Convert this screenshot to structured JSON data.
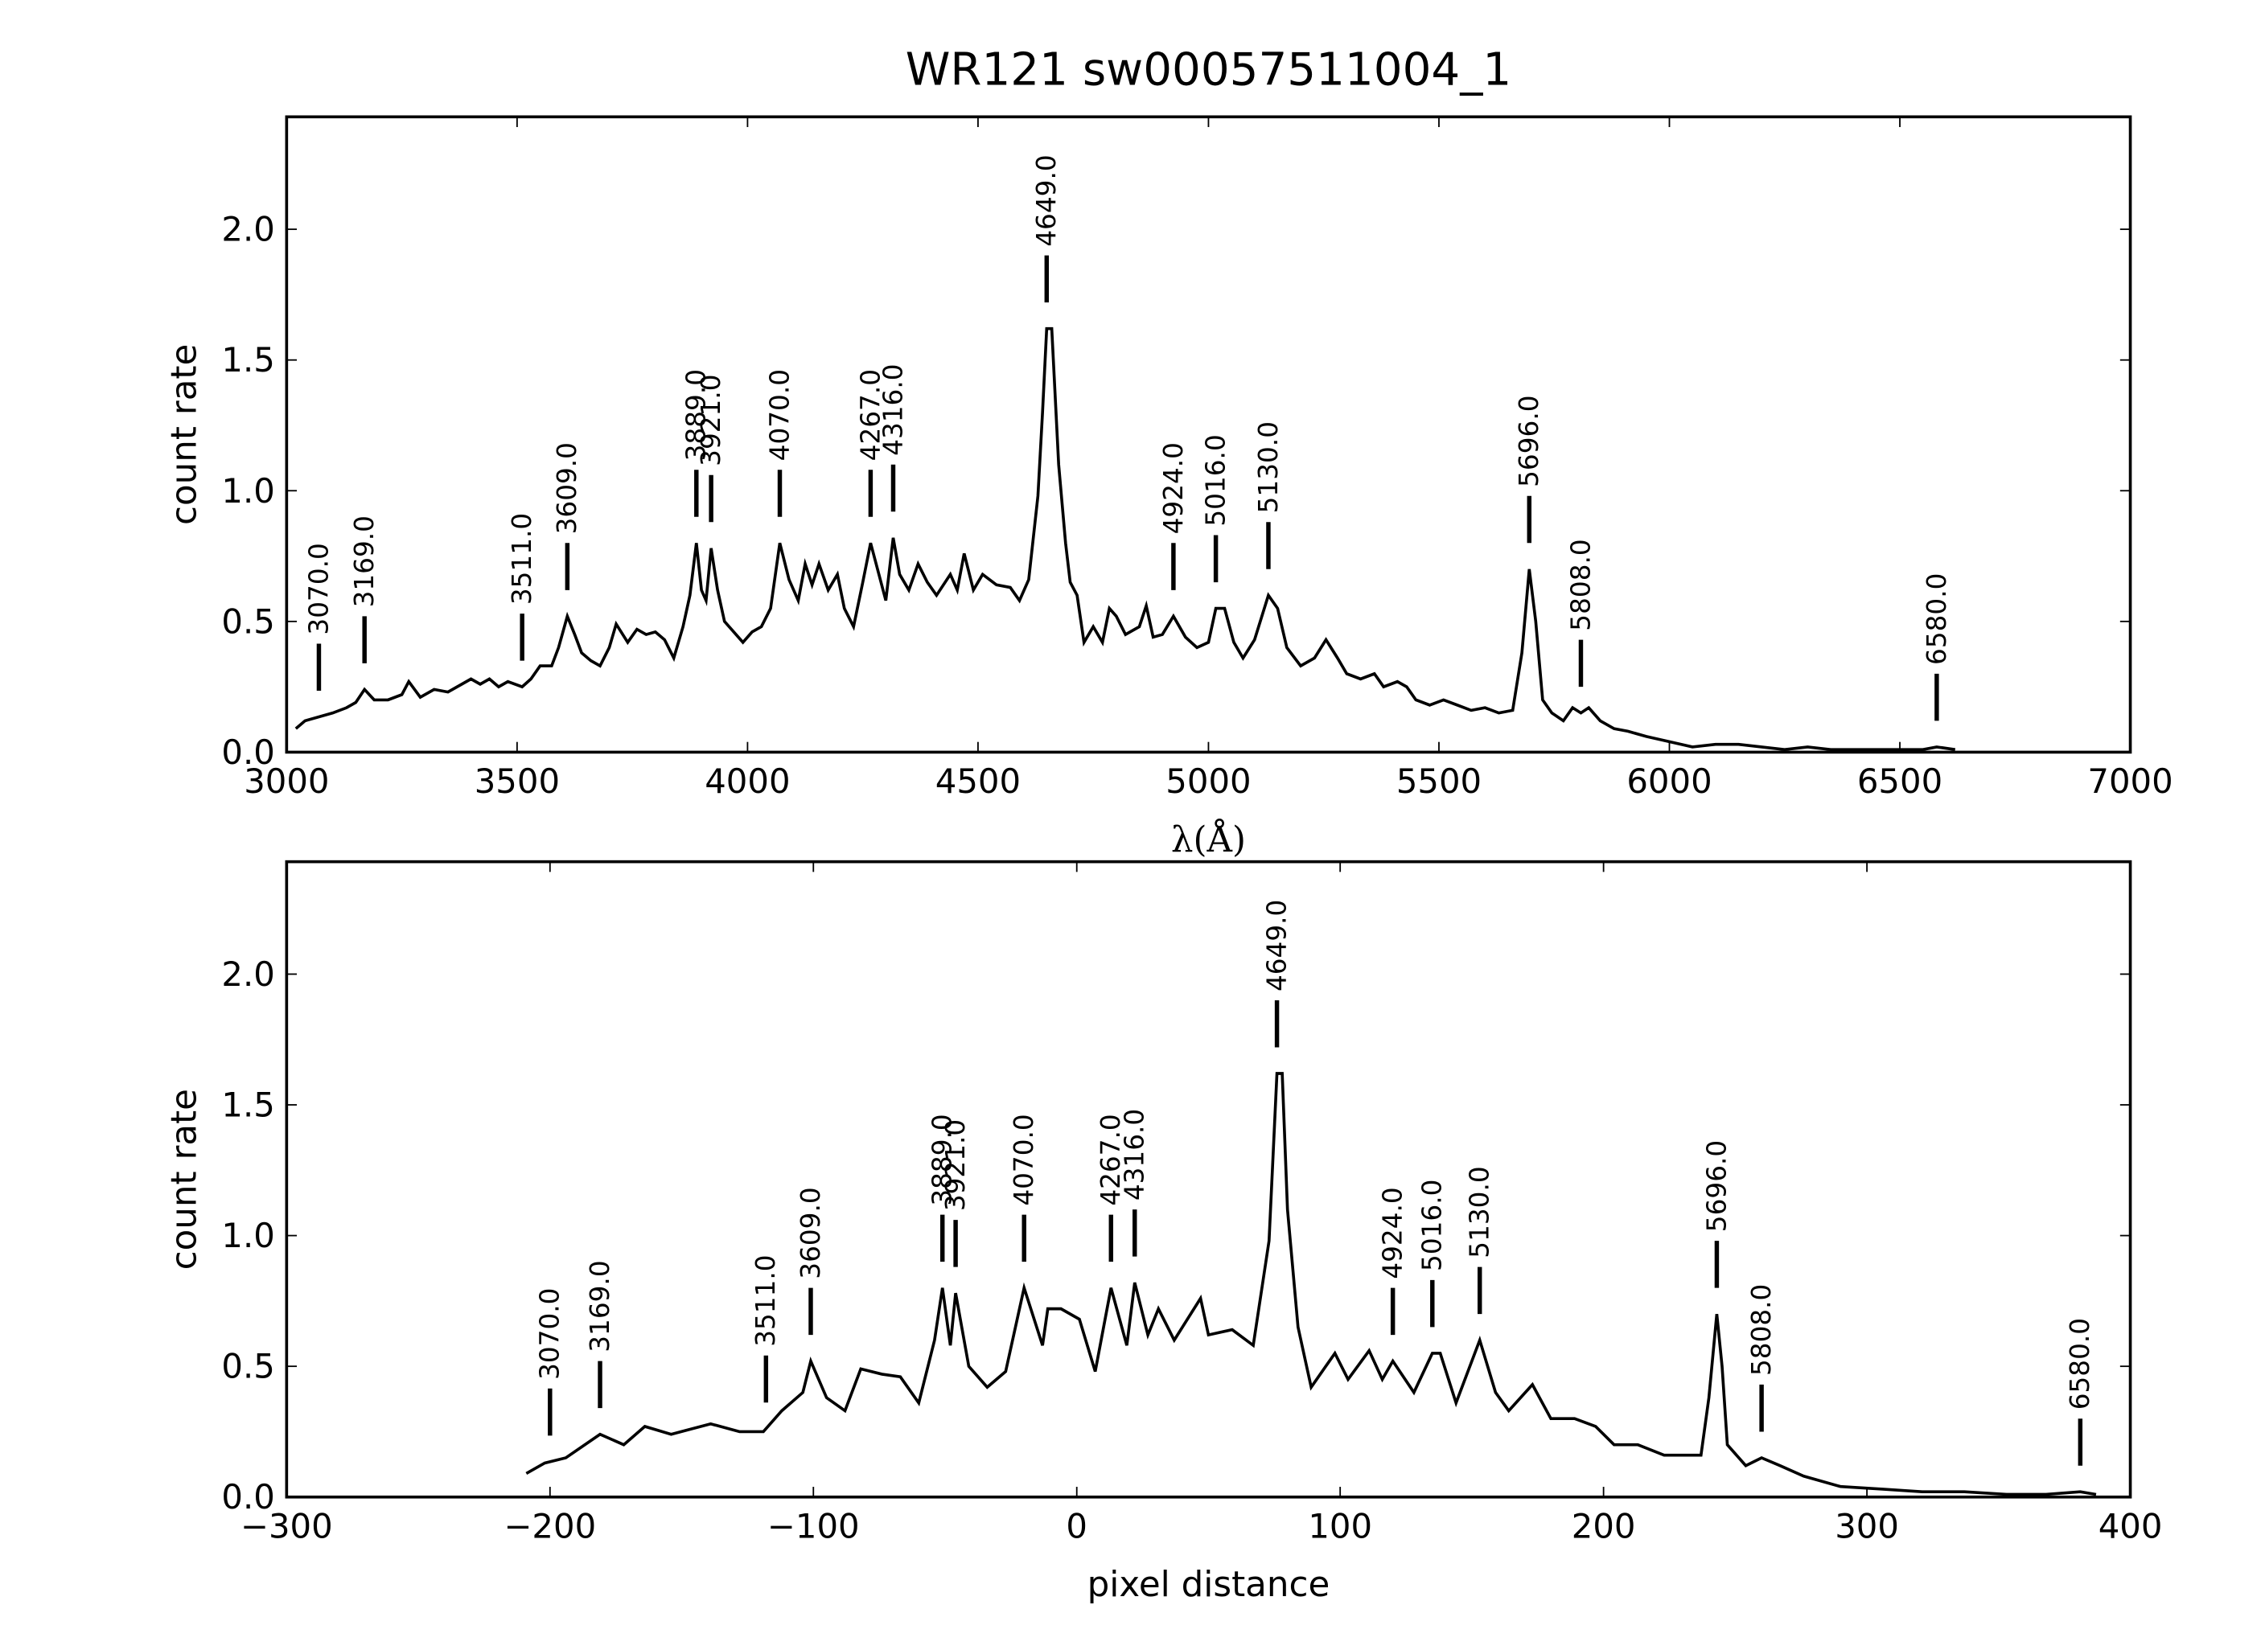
{
  "chart_data": [
    {
      "type": "line",
      "title": "WR121  sw00057511004_1",
      "xlabel": "λ(Å)",
      "ylabel": "count rate",
      "xlim": [
        3000,
        7000
      ],
      "xticks": [
        3000,
        3500,
        4000,
        4500,
        5000,
        5500,
        6000,
        6500,
        7000
      ],
      "ylim": [
        0,
        2.43
      ],
      "yticks": [
        {
          "value": 0,
          "label": "0.0"
        },
        0.5,
        {
          "value": 1,
          "label": "1.0"
        },
        1.5,
        {
          "value": 2,
          "label": "2.0"
        }
      ],
      "series": [
        {
          "color": "#000000",
          "x": [
            3020,
            3040,
            3060,
            3080,
            3100,
            3130,
            3150,
            3169,
            3190,
            3220,
            3250,
            3265,
            3290,
            3320,
            3350,
            3380,
            3400,
            3420,
            3440,
            3460,
            3480,
            3511,
            3530,
            3550,
            3575,
            3590,
            3609,
            3625,
            3640,
            3660,
            3680,
            3700,
            3715,
            3740,
            3760,
            3780,
            3800,
            3820,
            3840,
            3860,
            3875,
            3889,
            3900,
            3910,
            3921,
            3935,
            3950,
            3970,
            3990,
            4010,
            4030,
            4050,
            4070,
            4090,
            4110,
            4125,
            4140,
            4155,
            4175,
            4195,
            4210,
            4230,
            4250,
            4267,
            4285,
            4300,
            4316,
            4330,
            4350,
            4370,
            4390,
            4410,
            4440,
            4455,
            4470,
            4490,
            4510,
            4540,
            4570,
            4590,
            4610,
            4630,
            4640,
            4649,
            4660,
            4675,
            4690,
            4700,
            4715,
            4730,
            4750,
            4770,
            4785,
            4800,
            4820,
            4850,
            4865,
            4880,
            4900,
            4924,
            4950,
            4975,
            5000,
            5016,
            5035,
            5055,
            5075,
            5100,
            5130,
            5150,
            5170,
            5200,
            5230,
            5255,
            5280,
            5300,
            5330,
            5360,
            5380,
            5410,
            5430,
            5450,
            5480,
            5510,
            5540,
            5570,
            5600,
            5630,
            5660,
            5680,
            5696,
            5710,
            5725,
            5745,
            5770,
            5790,
            5808,
            5825,
            5850,
            5880,
            5910,
            5950,
            6000,
            6050,
            6100,
            6150,
            6200,
            6250,
            6300,
            6350,
            6400,
            6450,
            6500,
            6550,
            6580,
            6620
          ],
          "values": [
            0.09,
            0.12,
            0.13,
            0.14,
            0.15,
            0.17,
            0.19,
            0.24,
            0.2,
            0.2,
            0.22,
            0.27,
            0.21,
            0.24,
            0.23,
            0.26,
            0.28,
            0.26,
            0.28,
            0.25,
            0.27,
            0.25,
            0.28,
            0.33,
            0.33,
            0.4,
            0.52,
            0.45,
            0.38,
            0.35,
            0.33,
            0.4,
            0.49,
            0.42,
            0.47,
            0.45,
            0.46,
            0.43,
            0.36,
            0.48,
            0.6,
            0.8,
            0.62,
            0.58,
            0.78,
            0.62,
            0.5,
            0.46,
            0.42,
            0.46,
            0.48,
            0.55,
            0.8,
            0.66,
            0.58,
            0.72,
            0.64,
            0.72,
            0.62,
            0.68,
            0.55,
            0.48,
            0.65,
            0.8,
            0.68,
            0.58,
            0.82,
            0.68,
            0.62,
            0.72,
            0.65,
            0.6,
            0.68,
            0.62,
            0.76,
            0.62,
            0.68,
            0.64,
            0.63,
            0.58,
            0.66,
            0.98,
            1.3,
            1.62,
            1.62,
            1.1,
            0.8,
            0.65,
            0.6,
            0.42,
            0.48,
            0.42,
            0.55,
            0.52,
            0.45,
            0.48,
            0.56,
            0.44,
            0.45,
            0.52,
            0.44,
            0.4,
            0.42,
            0.55,
            0.55,
            0.42,
            0.36,
            0.43,
            0.6,
            0.55,
            0.4,
            0.33,
            0.36,
            0.43,
            0.36,
            0.3,
            0.28,
            0.3,
            0.25,
            0.27,
            0.25,
            0.2,
            0.18,
            0.2,
            0.18,
            0.16,
            0.17,
            0.15,
            0.16,
            0.38,
            0.7,
            0.5,
            0.2,
            0.15,
            0.12,
            0.17,
            0.15,
            0.17,
            0.12,
            0.09,
            0.08,
            0.06,
            0.04,
            0.02,
            0.03,
            0.03,
            0.02,
            0.01,
            0.02,
            0.01,
            0.01,
            0.01,
            0.01,
            0.01,
            0.02,
            0.01
          ]
        }
      ],
      "annotations": [
        {
          "label": "3070.0",
          "x": 3070
        },
        {
          "label": "3169.0",
          "x": 3169
        },
        {
          "label": "3511.0",
          "x": 3511
        },
        {
          "label": "3609.0",
          "x": 3609
        },
        {
          "label": "3889.0",
          "x": 3889
        },
        {
          "label": "3921.0",
          "x": 3921
        },
        {
          "label": "4070.0",
          "x": 4070
        },
        {
          "label": "4267.0",
          "x": 4267
        },
        {
          "label": "4316.0",
          "x": 4316
        },
        {
          "label": "4649.0",
          "x": 4649
        },
        {
          "label": "4924.0",
          "x": 4924
        },
        {
          "label": "5016.0",
          "x": 5016
        },
        {
          "label": "5130.0",
          "x": 5130
        },
        {
          "label": "5696.0",
          "x": 5696
        },
        {
          "label": "5808.0",
          "x": 5808
        },
        {
          "label": "6580.0",
          "x": 6580
        }
      ]
    },
    {
      "type": "line",
      "xlabel": "pixel distance",
      "ylabel": "count rate",
      "xlim": [
        -300,
        400
      ],
      "xticks": [
        {
          "value": -300,
          "label": "−300"
        },
        {
          "value": -200,
          "label": "−200"
        },
        {
          "value": -100,
          "label": "−100"
        },
        0,
        100,
        200,
        300,
        400
      ],
      "ylim": [
        0,
        2.43
      ],
      "yticks": [
        {
          "value": 0,
          "label": "0.0"
        },
        0.5,
        {
          "value": 1,
          "label": "1.0"
        },
        1.5,
        {
          "value": 2,
          "label": "2.0"
        }
      ],
      "series": [
        {
          "color": "#000000",
          "x": [
            -209,
            -202,
            -194,
            -181,
            -172,
            -164,
            -154,
            -139,
            -128,
            -119,
            -112,
            -104,
            -101,
            -95,
            -88,
            -82,
            -74,
            -67,
            -60,
            -54,
            -51,
            -48,
            -46,
            -41,
            -34,
            -27,
            -20,
            -13,
            -11,
            -6,
            1,
            7,
            13,
            19,
            22,
            27,
            31,
            37,
            47,
            50,
            59,
            67,
            73,
            76,
            78,
            80,
            84,
            89,
            98,
            103,
            111,
            116,
            120,
            128,
            135,
            138,
            144,
            153,
            159,
            164,
            173,
            180,
            189,
            197,
            204,
            213,
            223,
            237,
            240,
            243,
            245,
            247,
            254,
            260,
            267,
            276,
            290,
            306,
            321,
            337,
            353,
            368,
            381,
            387
          ],
          "values": [
            0.09,
            0.13,
            0.15,
            0.24,
            0.2,
            0.27,
            0.24,
            0.28,
            0.25,
            0.25,
            0.33,
            0.4,
            0.52,
            0.38,
            0.33,
            0.49,
            0.47,
            0.46,
            0.36,
            0.6,
            0.8,
            0.58,
            0.78,
            0.5,
            0.42,
            0.48,
            0.8,
            0.58,
            0.72,
            0.72,
            0.68,
            0.48,
            0.8,
            0.58,
            0.82,
            0.62,
            0.72,
            0.6,
            0.76,
            0.62,
            0.64,
            0.58,
            0.98,
            1.62,
            1.62,
            1.1,
            0.65,
            0.42,
            0.55,
            0.45,
            0.56,
            0.45,
            0.52,
            0.4,
            0.55,
            0.55,
            0.36,
            0.6,
            0.4,
            0.33,
            0.43,
            0.3,
            0.3,
            0.27,
            0.2,
            0.2,
            0.16,
            0.16,
            0.38,
            0.7,
            0.5,
            0.2,
            0.12,
            0.15,
            0.12,
            0.08,
            0.04,
            0.03,
            0.02,
            0.02,
            0.01,
            0.01,
            0.02,
            0.01
          ]
        }
      ],
      "annotations": [
        {
          "label": "3070.0",
          "x": -200
        },
        {
          "label": "3169.0",
          "x": -181
        },
        {
          "label": "3511.0",
          "x": -118
        },
        {
          "label": "3609.0",
          "x": -101
        },
        {
          "label": "3889.0",
          "x": -51
        },
        {
          "label": "3921.0",
          "x": -46
        },
        {
          "label": "4070.0",
          "x": -20
        },
        {
          "label": "4267.0",
          "x": 13
        },
        {
          "label": "4316.0",
          "x": 22
        },
        {
          "label": "4649.0",
          "x": 76
        },
        {
          "label": "4924.0",
          "x": 120
        },
        {
          "label": "5016.0",
          "x": 135
        },
        {
          "label": "5130.0",
          "x": 153
        },
        {
          "label": "5696.0",
          "x": 243
        },
        {
          "label": "5808.0",
          "x": 260
        },
        {
          "label": "6580.0",
          "x": 381
        }
      ]
    }
  ]
}
